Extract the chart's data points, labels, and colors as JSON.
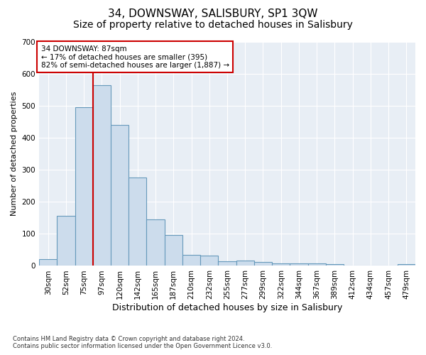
{
  "title": "34, DOWNSWAY, SALISBURY, SP1 3QW",
  "subtitle": "Size of property relative to detached houses in Salisbury",
  "xlabel": "Distribution of detached houses by size in Salisbury",
  "ylabel": "Number of detached properties",
  "footnote": "Contains HM Land Registry data © Crown copyright and database right 2024.\nContains public sector information licensed under the Open Government Licence v3.0.",
  "bar_labels": [
    "30sqm",
    "52sqm",
    "75sqm",
    "97sqm",
    "120sqm",
    "142sqm",
    "165sqm",
    "187sqm",
    "210sqm",
    "232sqm",
    "255sqm",
    "277sqm",
    "299sqm",
    "322sqm",
    "344sqm",
    "367sqm",
    "389sqm",
    "412sqm",
    "434sqm",
    "457sqm",
    "479sqm"
  ],
  "bar_values": [
    22,
    157,
    495,
    565,
    440,
    277,
    145,
    97,
    35,
    33,
    15,
    16,
    12,
    8,
    7,
    7,
    6,
    0,
    0,
    0,
    6
  ],
  "bar_color": "#ccdcec",
  "bar_edge_color": "#6699bb",
  "vline_x_idx": 2.5,
  "vline_color": "#cc0000",
  "annotation_text": "34 DOWNSWAY: 87sqm\n← 17% of detached houses are smaller (395)\n82% of semi-detached houses are larger (1,887) →",
  "annotation_box_color": "#cc0000",
  "ylim": [
    0,
    700
  ],
  "yticks": [
    0,
    100,
    200,
    300,
    400,
    500,
    600,
    700
  ],
  "plot_bg_color": "#e8eef5",
  "grid_color": "#ffffff",
  "title_fontsize": 11,
  "subtitle_fontsize": 10,
  "xlabel_fontsize": 9,
  "ylabel_fontsize": 8,
  "tick_fontsize": 7.5,
  "annotation_fontsize": 7.5,
  "footnote_fontsize": 6
}
